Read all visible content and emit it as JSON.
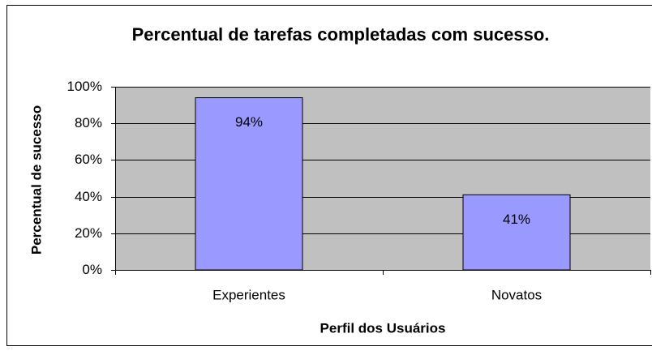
{
  "chart_data": {
    "type": "bar",
    "title": "Percentual de tarefas completadas com sucesso.",
    "x_label": "Perfil dos Usuários",
    "y_label": "Percentual de sucesso",
    "categories": [
      "Experientes",
      "Novatos"
    ],
    "values": [
      94,
      41
    ],
    "value_labels": [
      "94%",
      "41%"
    ],
    "color": "#9999ff",
    "ylim": [
      0,
      100
    ],
    "yticks": [
      {
        "value": 0,
        "label": "0%"
      },
      {
        "value": 20,
        "label": "20%"
      },
      {
        "value": 40,
        "label": "40%"
      },
      {
        "value": 60,
        "label": "60%"
      },
      {
        "value": 80,
        "label": "80%"
      },
      {
        "value": 100,
        "label": "100%"
      }
    ],
    "grid": true
  }
}
